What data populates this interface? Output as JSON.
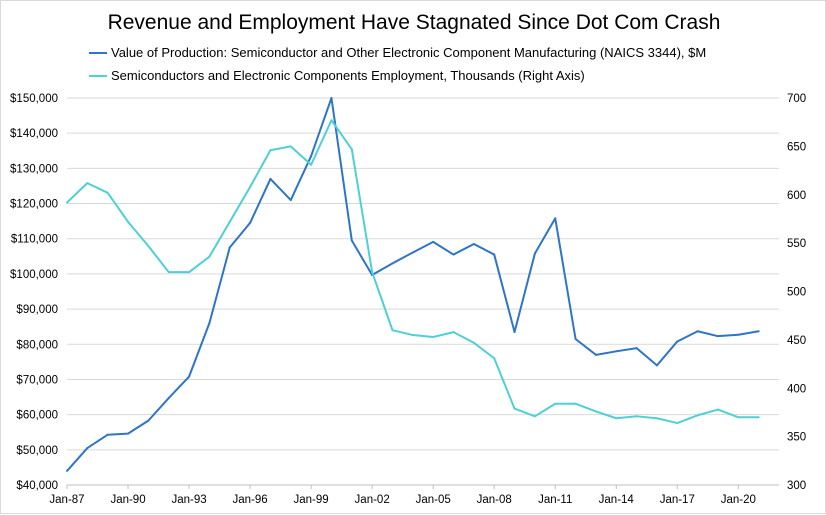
{
  "chart_data": {
    "type": "line",
    "title": "Revenue and Employment Have Stagnated Since Dot Com Crash",
    "x_tick_labels": [
      "Jan-87",
      "Jan-90",
      "Jan-93",
      "Jan-96",
      "Jan-99",
      "Jan-02",
      "Jan-05",
      "Jan-08",
      "Jan-11",
      "Jan-14",
      "Jan-17",
      "Jan-20"
    ],
    "x_range": [
      1987,
      2022
    ],
    "y_left": {
      "range": [
        40000,
        150000
      ],
      "ticks": [
        40000,
        50000,
        60000,
        70000,
        80000,
        90000,
        100000,
        110000,
        120000,
        130000,
        140000,
        150000
      ],
      "tick_labels": [
        "$40,000",
        "$50,000",
        "$60,000",
        "$70,000",
        "$80,000",
        "$90,000",
        "$100,000",
        "$110,000",
        "$120,000",
        "$130,000",
        "$140,000",
        "$150,000"
      ]
    },
    "y_right": {
      "range": [
        300,
        700
      ],
      "ticks": [
        300,
        350,
        400,
        450,
        500,
        550,
        600,
        650,
        700
      ],
      "tick_labels": [
        "300",
        "350",
        "400",
        "450",
        "500",
        "550",
        "600",
        "650",
        "700"
      ]
    },
    "legend_position": "top",
    "series": [
      {
        "name": "Value of Production: Semiconductor and Other Electronic Component Manufacturing (NAICS 3344), $M",
        "axis": "left",
        "color": "#2e75c8",
        "x": [
          1987,
          1988,
          1989,
          1990,
          1991,
          1992,
          1993,
          1994,
          1995,
          1996,
          1997,
          1998,
          1999,
          2000,
          2001,
          2002,
          2003,
          2004,
          2005,
          2006,
          2007,
          2008,
          2009,
          2010,
          2011,
          2012,
          2013,
          2014,
          2015,
          2016,
          2017,
          2018,
          2019,
          2020,
          2021
        ],
        "values": [
          44000,
          50500,
          54300,
          54600,
          58300,
          64700,
          70800,
          86000,
          107500,
          114500,
          127000,
          121000,
          133500,
          150000,
          109500,
          99700,
          103000,
          106100,
          109100,
          105500,
          108500,
          105500,
          83500,
          105800,
          115800,
          81500,
          77000,
          78000,
          78900,
          74000,
          80800,
          83700,
          82300,
          82700,
          83700
        ]
      },
      {
        "name": "Semiconductors and Electronic Components Employment, Thousands (Right Axis)",
        "axis": "right",
        "color": "#4dd0d6",
        "x": [
          1987,
          1988,
          1989,
          1990,
          1991,
          1992,
          1993,
          1994,
          1995,
          1996,
          1997,
          1998,
          1999,
          2000,
          2001,
          2002,
          2003,
          2004,
          2005,
          2006,
          2007,
          2008,
          2009,
          2010,
          2011,
          2012,
          2013,
          2014,
          2015,
          2016,
          2017,
          2018,
          2019,
          2020,
          2021
        ],
        "values": [
          592,
          612,
          602,
          572,
          547,
          520,
          520,
          536,
          572,
          608,
          646,
          650,
          631,
          677,
          647,
          520,
          460,
          455,
          453,
          458,
          447,
          431,
          379,
          371,
          384,
          384,
          376,
          369,
          371,
          369,
          364,
          372,
          378,
          370,
          370
        ]
      }
    ]
  }
}
